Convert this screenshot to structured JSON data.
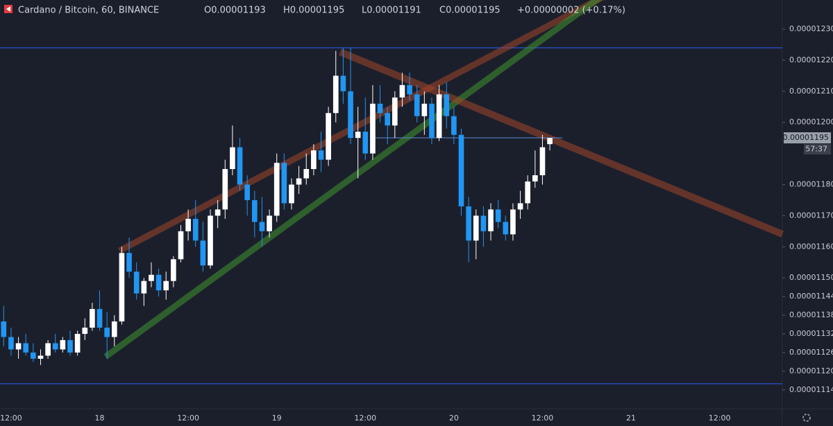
{
  "chart_data": {
    "type": "candlestick",
    "header": {
      "symbol": "Cardano / Bitcoin, 60, BINANCE",
      "open": "O0.00001193",
      "high": "H0.00001195",
      "low": "L0.00001191",
      "close": "C0.00001195",
      "change": "+0.00000002 (+0.17%)"
    },
    "last_price_label": "0.00001195",
    "countdown": "57:37",
    "up_color": "#ffffff",
    "down_color": "#2196f3",
    "ylim": [
      1.10795e-05,
      1.23935e-05
    ],
    "yticks": [
      {
        "value": 1.23e-05,
        "label": "0.00001230"
      },
      {
        "value": 1.22e-05,
        "label": "0.00001220"
      },
      {
        "value": 1.21e-05,
        "label": "0.00001210"
      },
      {
        "value": 1.2e-05,
        "label": "0.00001200"
      },
      {
        "value": 1.18e-05,
        "label": "0.00001180"
      },
      {
        "value": 1.17e-05,
        "label": "0.00001170"
      },
      {
        "value": 1.16e-05,
        "label": "0.00001160"
      },
      {
        "value": 1.15e-05,
        "label": "0.00001150"
      },
      {
        "value": 1.144e-05,
        "label": "0.00001144"
      },
      {
        "value": 1.138e-05,
        "label": "0.00001138"
      },
      {
        "value": 1.132e-05,
        "label": "0.00001132"
      },
      {
        "value": 1.126e-05,
        "label": "0.00001126"
      },
      {
        "value": 1.12e-05,
        "label": "0.00001120"
      },
      {
        "value": 1.114e-05,
        "label": "0.00001114"
      }
    ],
    "categories": [
      null,
      "12:00",
      null,
      null,
      null,
      null,
      null,
      null,
      null,
      null,
      null,
      null,
      null,
      "18",
      null,
      null,
      null,
      null,
      null,
      null,
      null,
      null,
      null,
      null,
      null,
      "12:00",
      null,
      null,
      null,
      null,
      null,
      null,
      null,
      null,
      null,
      null,
      null,
      "19",
      null,
      null,
      null,
      null,
      null,
      null,
      null,
      null,
      null,
      null,
      null,
      "12:00",
      null,
      null,
      null,
      null,
      null,
      null,
      null,
      null,
      null,
      null,
      null,
      "20",
      null,
      null,
      null,
      null,
      null,
      null,
      null,
      null,
      null,
      null,
      null,
      "12:00",
      null,
      null,
      null,
      null,
      null,
      null,
      null,
      null,
      null,
      null,
      null,
      "21",
      null,
      null,
      null,
      null,
      null,
      null,
      null,
      null,
      null,
      null,
      null,
      "12:00",
      null,
      null,
      null,
      null,
      null,
      null,
      null,
      null
    ],
    "ohlc": [
      [
        1.136e-05,
        1.141e-05,
        1.128e-05,
        1.131e-05
      ],
      [
        1.131e-05,
        1.134e-05,
        1.125e-05,
        1.127e-05
      ],
      [
        1.127e-05,
        1.131e-05,
        1.124e-05,
        1.129e-05
      ],
      [
        1.129e-05,
        1.132e-05,
        1.125e-05,
        1.126e-05
      ],
      [
        1.126e-05,
        1.129e-05,
        1.123e-05,
        1.124e-05
      ],
      [
        1.124e-05,
        1.127e-05,
        1.122e-05,
        1.125e-05
      ],
      [
        1.125e-05,
        1.13e-05,
        1.124e-05,
        1.129e-05
      ],
      [
        1.129e-05,
        1.132e-05,
        1.126e-05,
        1.127e-05
      ],
      [
        1.127e-05,
        1.131e-05,
        1.126e-05,
        1.13e-05
      ],
      [
        1.13e-05,
        1.133e-05,
        1.125e-05,
        1.126e-05
      ],
      [
        1.126e-05,
        1.133e-05,
        1.125e-05,
        1.132e-05
      ],
      [
        1.132e-05,
        1.137e-05,
        1.13e-05,
        1.134e-05
      ],
      [
        1.134e-05,
        1.142e-05,
        1.133e-05,
        1.14e-05
      ],
      [
        1.14e-05,
        1.146e-05,
        1.133e-05,
        1.134e-05
      ],
      [
        1.134e-05,
        1.139e-05,
        1.124e-05,
        1.131e-05
      ],
      [
        1.131e-05,
        1.138e-05,
        1.128e-05,
        1.136e-05
      ],
      [
        1.136e-05,
        1.16e-05,
        1.135e-05,
        1.158e-05
      ],
      [
        1.158e-05,
        1.163e-05,
        1.15e-05,
        1.152e-05
      ],
      [
        1.152e-05,
        1.155e-05,
        1.143e-05,
        1.145e-05
      ],
      [
        1.145e-05,
        1.15e-05,
        1.141e-05,
        1.149e-05
      ],
      [
        1.149e-05,
        1.155e-05,
        1.147e-05,
        1.151e-05
      ],
      [
        1.151e-05,
        1.153e-05,
        1.144e-05,
        1.146e-05
      ],
      [
        1.146e-05,
        1.152e-05,
        1.143e-05,
        1.149e-05
      ],
      [
        1.149e-05,
        1.157e-05,
        1.147e-05,
        1.156e-05
      ],
      [
        1.156e-05,
        1.167e-05,
        1.155e-05,
        1.165e-05
      ],
      [
        1.165e-05,
        1.172e-05,
        1.162e-05,
        1.169e-05
      ],
      [
        1.169e-05,
        1.175e-05,
        1.16e-05,
        1.162e-05
      ],
      [
        1.162e-05,
        1.168e-05,
        1.152e-05,
        1.154e-05
      ],
      [
        1.154e-05,
        1.172e-05,
        1.153e-05,
        1.17e-05
      ],
      [
        1.17e-05,
        1.175e-05,
        1.166e-05,
        1.172e-05
      ],
      [
        1.172e-05,
        1.188e-05,
        1.169e-05,
        1.185e-05
      ],
      [
        1.185e-05,
        1.199e-05,
        1.183e-05,
        1.192e-05
      ],
      [
        1.192e-05,
        1.195e-05,
        1.178e-05,
        1.18e-05
      ],
      [
        1.18e-05,
        1.183e-05,
        1.17e-05,
        1.175e-05
      ],
      [
        1.175e-05,
        1.178e-05,
        1.163e-05,
        1.168e-05
      ],
      [
        1.168e-05,
        1.176e-05,
        1.16e-05,
        1.165e-05
      ],
      [
        1.165e-05,
        1.172e-05,
        1.163e-05,
        1.17e-05
      ],
      [
        1.17e-05,
        1.19e-05,
        1.168e-05,
        1.187e-05
      ],
      [
        1.187e-05,
        1.19e-05,
        1.172e-05,
        1.174e-05
      ],
      [
        1.174e-05,
        1.182e-05,
        1.172e-05,
        1.18e-05
      ],
      [
        1.18e-05,
        1.186e-05,
        1.177e-05,
        1.182e-05
      ],
      [
        1.182e-05,
        1.19e-05,
        1.18e-05,
        1.185e-05
      ],
      [
        1.185e-05,
        1.193e-05,
        1.183e-05,
        1.191e-05
      ],
      [
        1.191e-05,
        1.197e-05,
        1.184e-05,
        1.188e-05
      ],
      [
        1.188e-05,
        1.205e-05,
        1.186e-05,
        1.203e-05
      ],
      [
        1.203e-05,
        1.223e-05,
        1.2e-05,
        1.215e-05
      ],
      [
        1.215e-05,
        1.224e-05,
        1.206e-05,
        1.21e-05
      ],
      [
        1.21e-05,
        1.224e-05,
        1.193e-05,
        1.195e-05
      ],
      [
        1.195e-05,
        1.205e-05,
        1.182e-05,
        1.197e-05
      ],
      [
        1.197e-05,
        1.208e-05,
        1.188e-05,
        1.19e-05
      ],
      [
        1.19e-05,
        1.212e-05,
        1.188e-05,
        1.206e-05
      ],
      [
        1.206e-05,
        1.212e-05,
        1.2e-05,
        1.203e-05
      ],
      [
        1.203e-05,
        1.205e-05,
        1.193e-05,
        1.199e-05
      ],
      [
        1.199e-05,
        1.21e-05,
        1.195e-05,
        1.208e-05
      ],
      [
        1.208e-05,
        1.216e-05,
        1.205e-05,
        1.212e-05
      ],
      [
        1.212e-05,
        1.216e-05,
        1.207e-05,
        1.209e-05
      ],
      [
        1.209e-05,
        1.212e-05,
        1.2e-05,
        1.202e-05
      ],
      [
        1.202e-05,
        1.21e-05,
        1.196e-05,
        1.206e-05
      ],
      [
        1.206e-05,
        1.208e-05,
        1.193e-05,
        1.195e-05
      ],
      [
        1.195e-05,
        1.212e-05,
        1.194e-05,
        1.209e-05
      ],
      [
        1.209e-05,
        1.213e-05,
        1.198e-05,
        1.202e-05
      ],
      [
        1.202e-05,
        1.205e-05,
        1.193e-05,
        1.196e-05
      ],
      [
        1.196e-05,
        1.198e-05,
        1.17e-05,
        1.173e-05
      ],
      [
        1.173e-05,
        1.176e-05,
        1.155e-05,
        1.162e-05
      ],
      [
        1.162e-05,
        1.172e-05,
        1.156e-05,
        1.17e-05
      ],
      [
        1.17e-05,
        1.173e-05,
        1.16e-05,
        1.165e-05
      ],
      [
        1.165e-05,
        1.174e-05,
        1.162e-05,
        1.172e-05
      ],
      [
        1.172e-05,
        1.175e-05,
        1.166e-05,
        1.168e-05
      ],
      [
        1.168e-05,
        1.17e-05,
        1.162e-05,
        1.164e-05
      ],
      [
        1.164e-05,
        1.174e-05,
        1.162e-05,
        1.172e-05
      ],
      [
        1.172e-05,
        1.178e-05,
        1.169e-05,
        1.174e-05
      ],
      [
        1.174e-05,
        1.183e-05,
        1.172e-05,
        1.181e-05
      ],
      [
        1.181e-05,
        1.191e-05,
        1.179e-05,
        1.183e-05
      ],
      [
        1.183e-05,
        1.196e-05,
        1.18e-05,
        1.192e-05
      ],
      [
        1.193e-05,
        1.195e-05,
        1.191e-05,
        1.195e-05
      ],
      null,
      null,
      null,
      null,
      null,
      null,
      null,
      null,
      null,
      null,
      null,
      null,
      null,
      null,
      null,
      null,
      null,
      null,
      null,
      null,
      null,
      null,
      null,
      null,
      null,
      null,
      null,
      null,
      null,
      null,
      null
    ]
  }
}
